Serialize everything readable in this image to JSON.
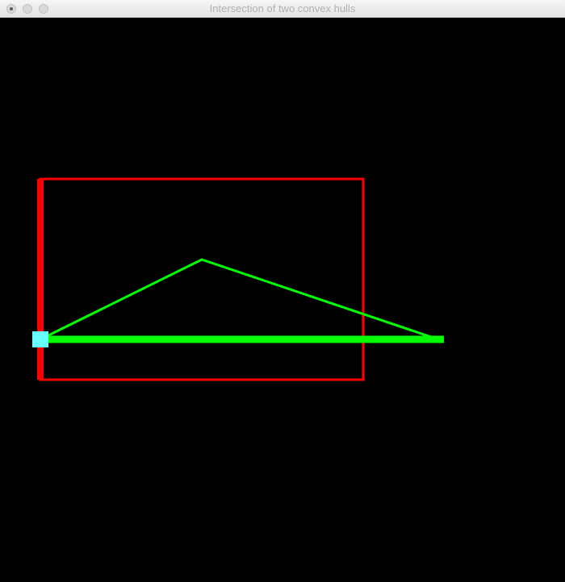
{
  "window": {
    "title": "Intersection of two convex hulls"
  },
  "colors": {
    "background": "#000000",
    "hull_a": "#ff0000",
    "hull_b": "#00ff00",
    "intersection_point": "#66ffff",
    "title_text": "#b0b0b0"
  },
  "icons": {
    "close": "close-icon",
    "minimize": "minimize-icon",
    "maximize": "maximize-icon"
  }
}
